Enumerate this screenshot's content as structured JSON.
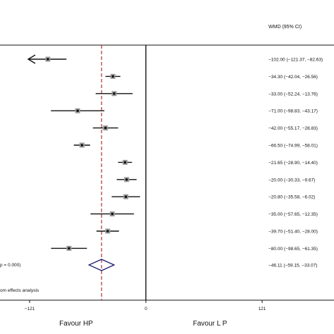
{
  "chart_data": {
    "type": "forest",
    "column_header": "WMD (95% CI)",
    "studies": [
      {
        "wmd": -102.0,
        "lower": -121.37,
        "upper": -82.63,
        "label": "−102.00 (−121.37, −82.63)",
        "arrow_left": true
      },
      {
        "wmd": -34.3,
        "lower": -42.04,
        "upper": -26.56,
        "label": "−34.30 (−42.04, −26.56)"
      },
      {
        "wmd": -33.0,
        "lower": -52.24,
        "upper": -13.76,
        "label": "−33.00 (−52.24, −13.76)"
      },
      {
        "wmd": -71.0,
        "lower": -98.83,
        "upper": -43.17,
        "label": "−71.00 (−98.83, −43.17)"
      },
      {
        "wmd": -42.0,
        "lower": -55.17,
        "upper": -28.83,
        "label": "−42.00 (−55.17, −28.83)"
      },
      {
        "wmd": -66.5,
        "lower": -74.99,
        "upper": -58.01,
        "label": "−66.50 (−74.99, −58.01)"
      },
      {
        "wmd": -21.65,
        "lower": -28.9,
        "upper": -14.4,
        "label": "−21.65 (−28.90, −14.40)"
      },
      {
        "wmd": -20.0,
        "lower": -30.33,
        "upper": -9.67,
        "label": "−20.00 (−30.33, −9.67)"
      },
      {
        "wmd": -20.8,
        "lower": -35.58,
        "upper": -6.02,
        "label": "−20.80 (−35.58, −6.02)"
      },
      {
        "wmd": -35.0,
        "lower": -57.65,
        "upper": -12.35,
        "label": "−35.00 (−57.65, −12.35)"
      },
      {
        "wmd": -39.7,
        "lower": -51.4,
        "upper": -28.0,
        "label": "−39.70 (−51.40, −28.00)"
      },
      {
        "wmd": -80.0,
        "lower": -98.65,
        "upper": -61.35,
        "label": "−80.00 (−98.65, −61.35)"
      }
    ],
    "overall": {
      "wmd": -46.11,
      "lower": -59.15,
      "upper": -33.07,
      "label": "−46.11 (−59.15, −33.07)"
    },
    "heterogeneity_text": "p = 0.000)",
    "note_text": "om effects analysis",
    "x_ticks": [
      {
        "value": -121,
        "label": "−121"
      },
      {
        "value": 0,
        "label": "0"
      },
      {
        "value": 121,
        "label": "121"
      }
    ],
    "xlim": [
      -151,
      194
    ],
    "favour_left": "Favour HP",
    "favour_right": "Favour L P",
    "colors": {
      "reference_line": "#b03030",
      "ink": "#111111"
    }
  }
}
